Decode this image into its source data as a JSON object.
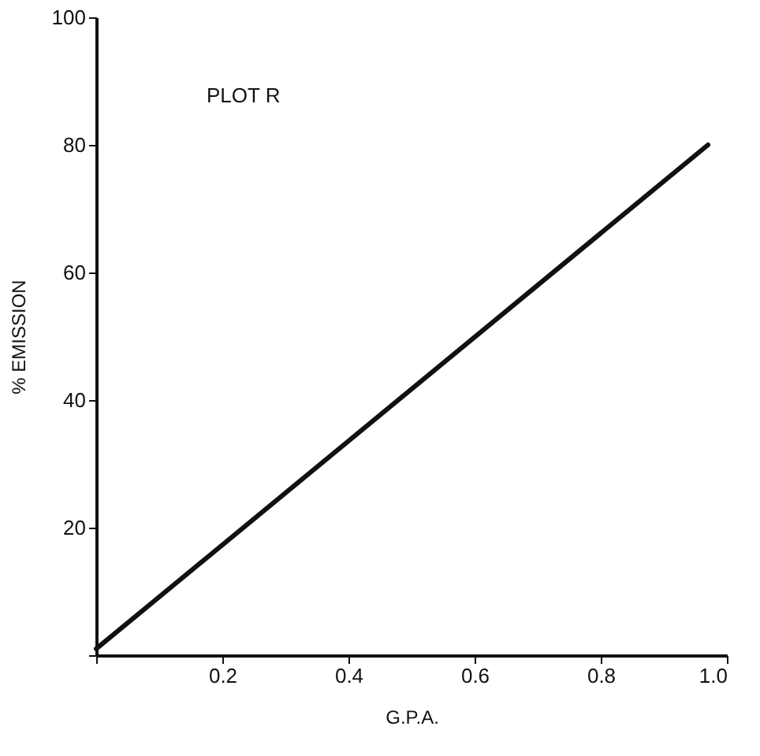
{
  "chart_data": {
    "type": "line",
    "xlabel": "G.P.A.",
    "ylabel": "% EMISSION",
    "annotations": [
      "PLOT R"
    ],
    "x": [
      0,
      0.97
    ],
    "series": [
      {
        "color": "#111111",
        "values": [
          1,
          80
        ]
      }
    ],
    "xlim": [
      0,
      1.0
    ],
    "xticks": [
      {
        "value": 0,
        "label": null
      },
      0.2,
      0.4,
      0.6,
      0.8,
      {
        "value": 1.0,
        "label": "1.0"
      }
    ],
    "ylim": [
      0,
      100
    ],
    "yticks": [
      {
        "value": 0,
        "label": null
      },
      20,
      40,
      60,
      80,
      100
    ],
    "grid": false
  }
}
